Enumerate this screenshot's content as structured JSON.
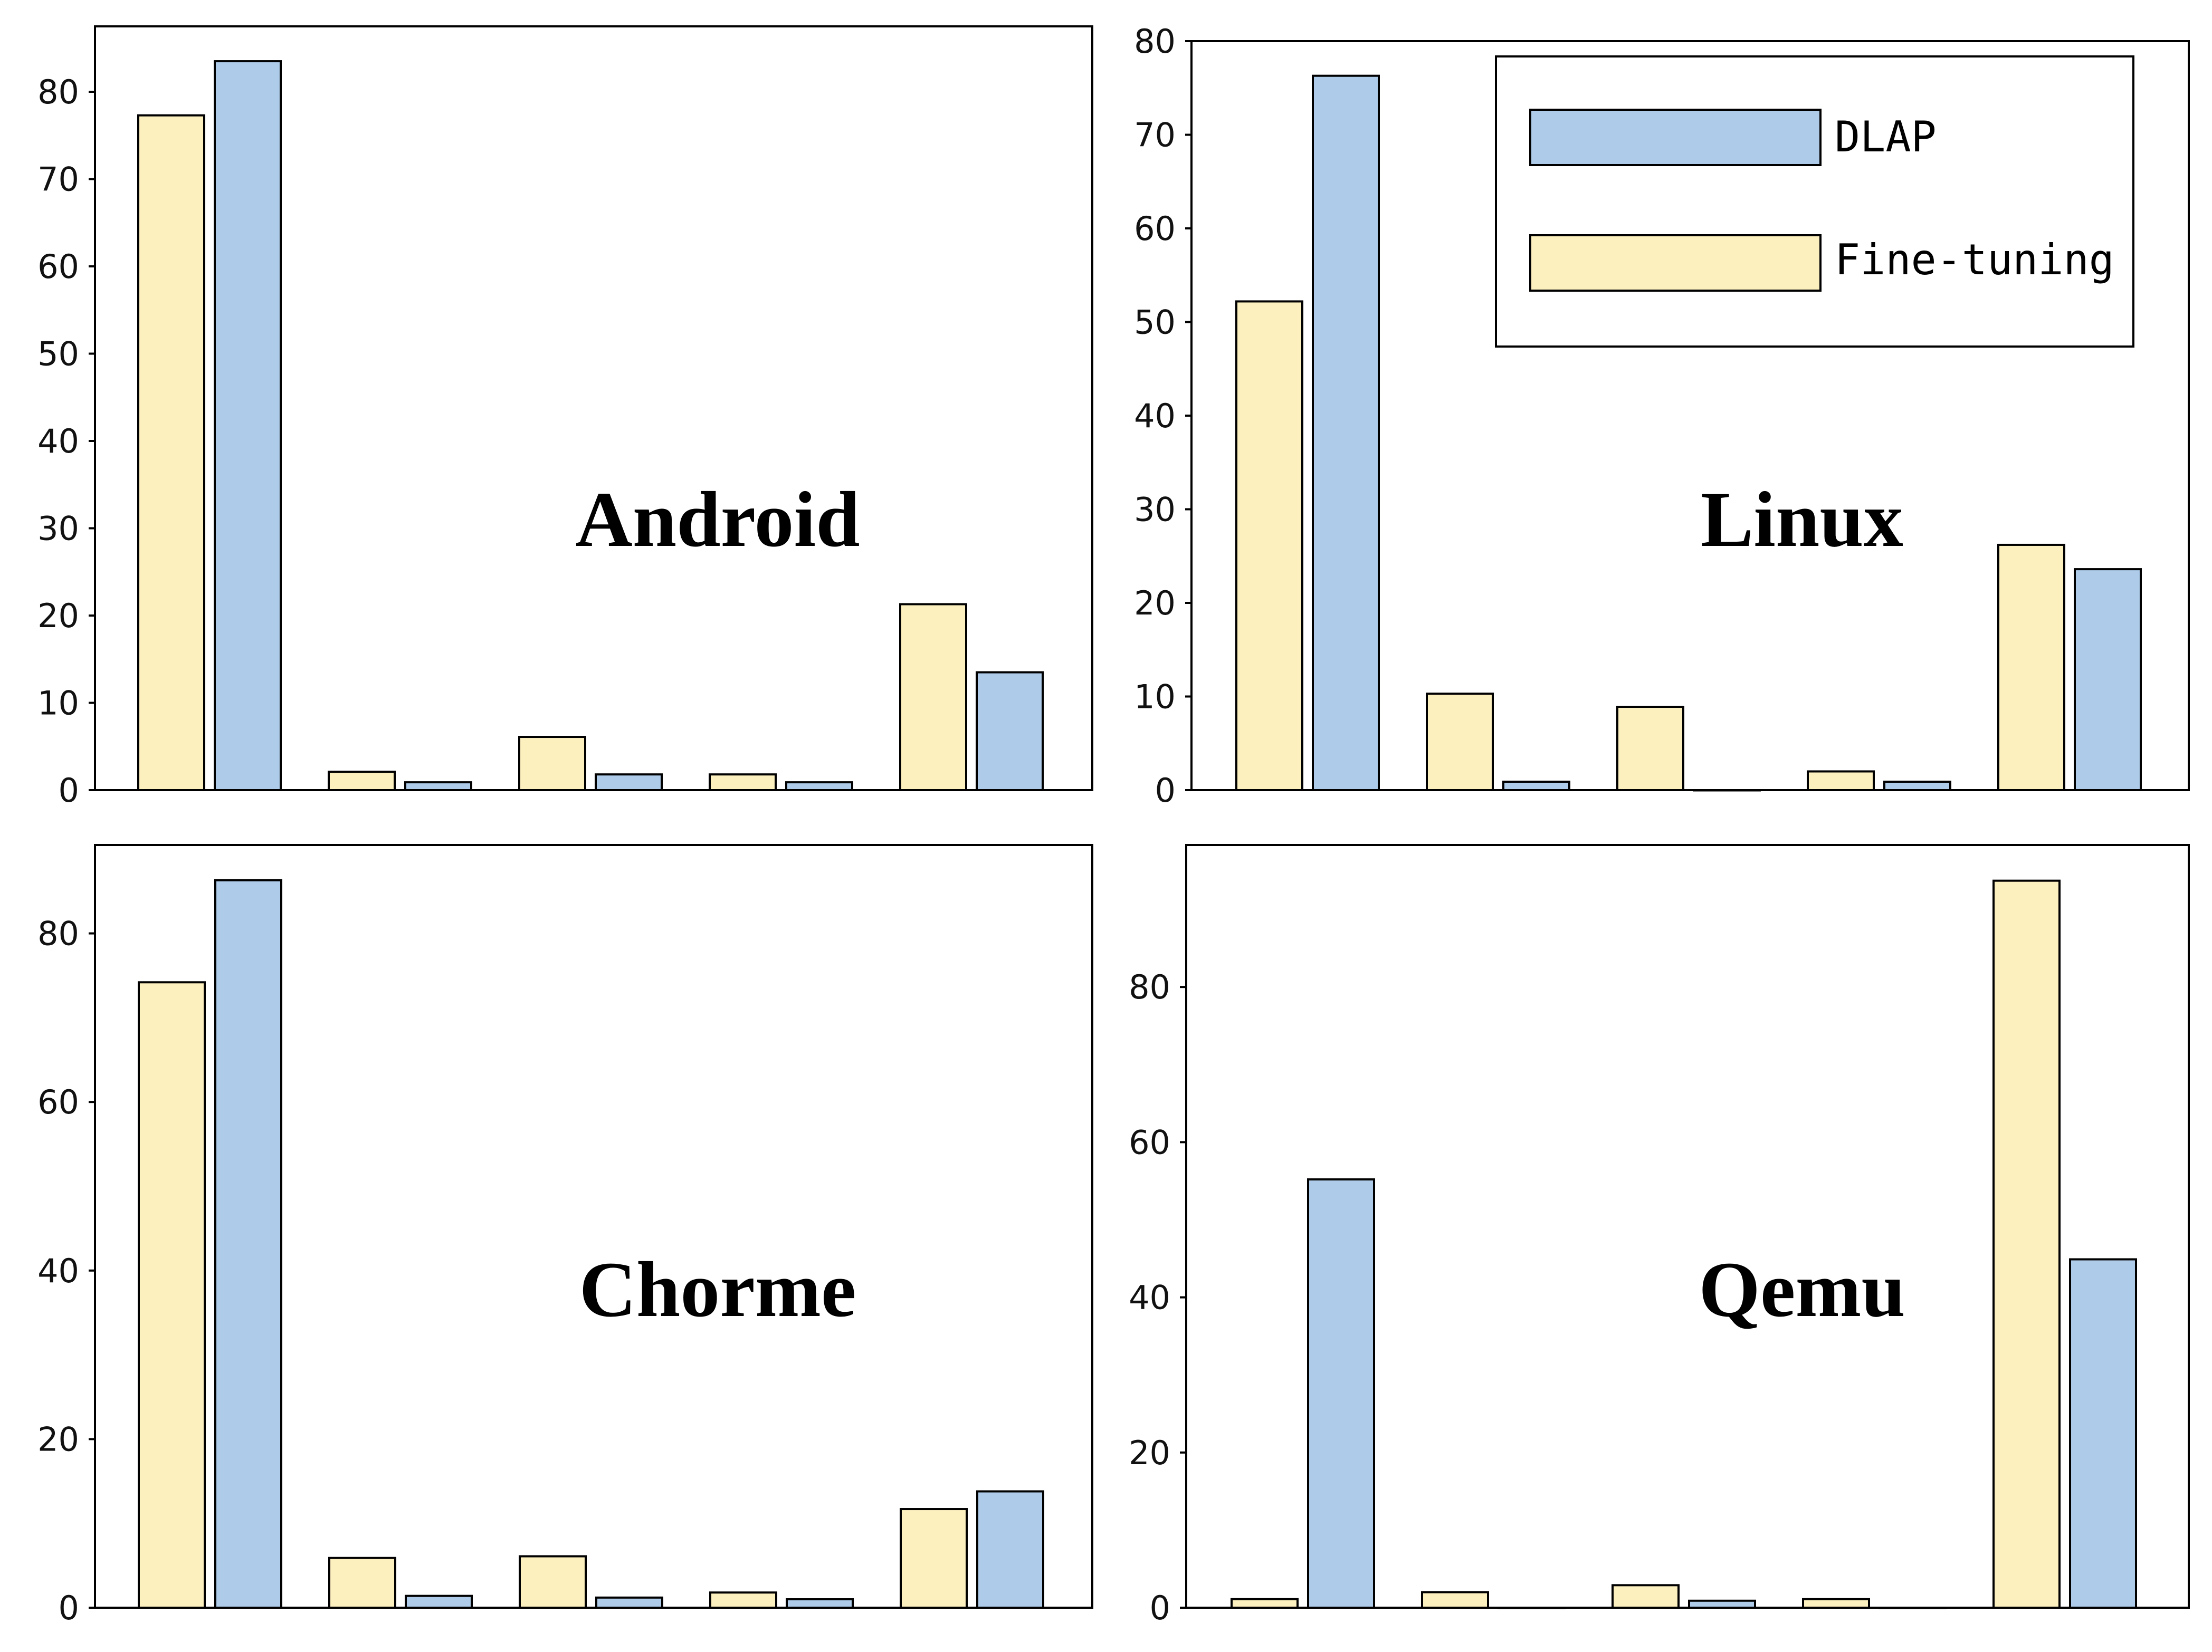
{
  "colors": {
    "DLAP": "#aecce9",
    "Fine-tuning": "#fdf0bf"
  },
  "legend": [
    {
      "name": "DLAP",
      "color": "#aecce9"
    },
    {
      "name": "Fine-tuning",
      "color": "#fdf0bf"
    }
  ],
  "chart_data": [
    {
      "type": "bar",
      "panel_label": "Android",
      "ylim": [
        0,
        87.5
      ],
      "yticks": [
        0,
        10,
        20,
        30,
        40,
        50,
        60,
        70,
        80
      ],
      "series": [
        {
          "name": "Fine-tuning",
          "values": [
            77.3,
            2.1,
            6.1,
            1.8,
            21.3
          ]
        },
        {
          "name": "DLAP",
          "values": [
            83.5,
            0.9,
            1.8,
            0.9,
            13.5
          ]
        }
      ],
      "grid": false,
      "legend": false
    },
    {
      "type": "bar",
      "panel_label": "Linux",
      "ylim": [
        0,
        80
      ],
      "yticks": [
        0,
        10,
        20,
        30,
        40,
        50,
        60,
        70,
        80
      ],
      "series": [
        {
          "name": "Fine-tuning",
          "values": [
            52.2,
            10.3,
            8.9,
            2.0,
            26.2
          ]
        },
        {
          "name": "DLAP",
          "values": [
            76.3,
            0.9,
            0.0,
            0.9,
            23.6
          ]
        }
      ],
      "grid": false,
      "legend": "top-right"
    },
    {
      "type": "bar",
      "panel_label": "Chorme",
      "ylim": [
        0,
        90.5
      ],
      "yticks": [
        0,
        20,
        40,
        60,
        80
      ],
      "series": [
        {
          "name": "Fine-tuning",
          "values": [
            74.2,
            5.9,
            6.1,
            1.8,
            11.7
          ]
        },
        {
          "name": "DLAP",
          "values": [
            86.3,
            1.4,
            1.2,
            1.0,
            13.8
          ]
        }
      ],
      "grid": false,
      "legend": false
    },
    {
      "type": "bar",
      "panel_label": "Qemu",
      "ylim": [
        0,
        98.3
      ],
      "yticks": [
        0,
        20,
        40,
        60,
        80
      ],
      "series": [
        {
          "name": "Fine-tuning",
          "values": [
            1.1,
            2.0,
            2.9,
            1.1,
            93.7
          ]
        },
        {
          "name": "DLAP",
          "values": [
            55.2,
            0.0,
            0.9,
            0.0,
            44.9
          ]
        }
      ],
      "grid": false,
      "legend": false
    }
  ]
}
